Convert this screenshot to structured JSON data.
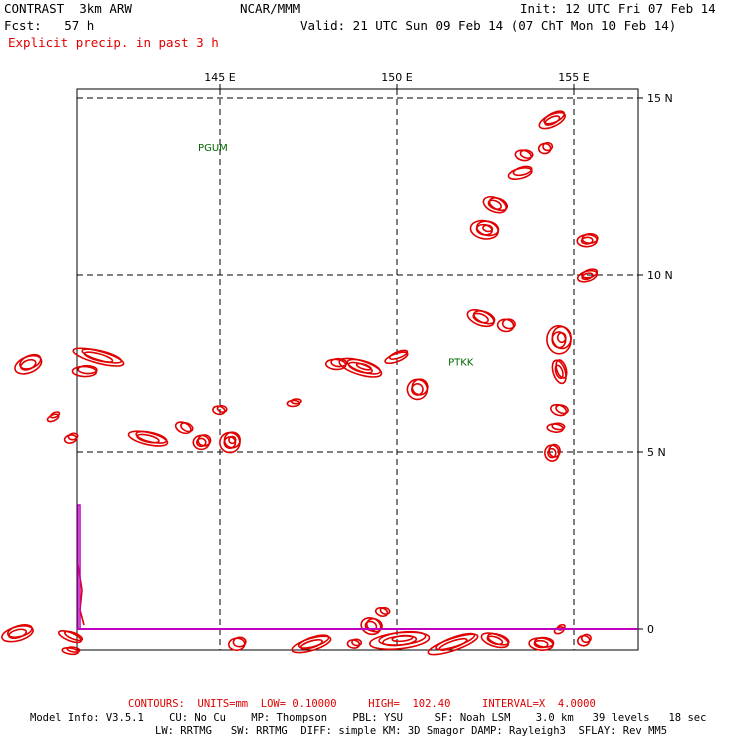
{
  "header": {
    "model": "CONTRAST  3km ARW",
    "org": "NCAR/MMM",
    "init": "Init: 12 UTC Fri 07 Feb 14",
    "fcst": "Fcst:   57 h",
    "valid": "Valid: 21 UTC Sun 09 Feb 14 (07 ChT Mon 10 Feb 14)",
    "field": "Explicit precip. in past 3 h"
  },
  "map": {
    "lon_labels": [
      "145 E",
      "150 E",
      "155 E"
    ],
    "lat_labels": [
      "15 N",
      "10 N",
      "5 N",
      "0"
    ],
    "stations": [
      {
        "id": "PGUM",
        "lon": 144.8,
        "lat": 13.5
      },
      {
        "id": "PTKK",
        "lon": 151.8,
        "lat": 7.45
      }
    ],
    "colors": {
      "precip": "#e00000",
      "station": "#006600",
      "equator": "#c000c0",
      "grid": "#000000"
    }
  },
  "footer": {
    "contours": "CONTOURS:  UNITS=mm  LOW= 0.10000     HIGH=  102.40     INTERVAL=X  4.0000",
    "info1": "Model Info: V3.5.1    CU: No Cu    MP: Thompson    PBL: YSU     SF: Noah LSM    3.0 km   39 levels   18 sec",
    "info2": "LW: RRTMG   SW: RRTMG  DIFF: simple KM: 3D Smagor DAMP: Rayleigh3  SFLAY: Rev MM5"
  }
}
